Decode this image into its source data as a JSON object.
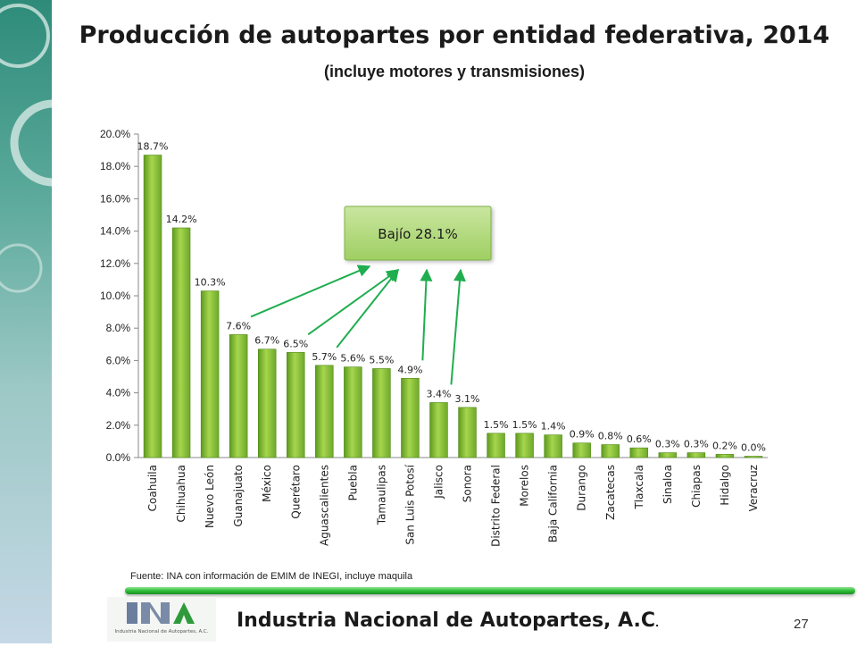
{
  "header": {
    "title": "Producción de autopartes por entidad federativa, 2014",
    "subtitle": "(incluye motores y transmisiones)"
  },
  "chart_data": {
    "type": "bar",
    "categories": [
      "Coahuila",
      "Chihuahua",
      "Nuevo León",
      "Guanajuato",
      "México",
      "Querétaro",
      "Aguascalientes",
      "Puebla",
      "Tamaulipas",
      "San Luis Potosí",
      "Jalisco",
      "Sonora",
      "Distrito Federal",
      "Morelos",
      "Baja California",
      "Durango",
      "Zacatecas",
      "Tlaxcala",
      "Sinaloa",
      "Chiapas",
      "Hidalgo",
      "Veracruz"
    ],
    "values": [
      18.7,
      14.2,
      10.3,
      7.6,
      6.7,
      6.5,
      5.7,
      5.6,
      5.5,
      4.9,
      3.4,
      3.1,
      1.5,
      1.5,
      1.4,
      0.9,
      0.8,
      0.6,
      0.3,
      0.3,
      0.2,
      0.0
    ],
    "value_labels": [
      "18.7%",
      "14.2%",
      "10.3%",
      "7.6%",
      "6.7%",
      "6.5%",
      "5.7%",
      "5.6%",
      "5.5%",
      "4.9%",
      "3.4%",
      "3.1%",
      "1.5%",
      "1.5%",
      "1.4%",
      "0.9%",
      "0.8%",
      "0.6%",
      "0.3%",
      "0.3%",
      "0.2%",
      "0.0%"
    ],
    "ylim": [
      0,
      20
    ],
    "yticks": [
      "0.0%",
      "2.0%",
      "4.0%",
      "6.0%",
      "8.0%",
      "10.0%",
      "12.0%",
      "14.0%",
      "16.0%",
      "18.0%",
      "20.0%"
    ],
    "bar_color": "#8dc63f",
    "annotation": {
      "label": "Bajío 28.1%",
      "points_to": [
        "Guanajuato",
        "Querétaro",
        "Aguascalientes",
        "San Luis Potosí",
        "Jalisco"
      ],
      "arrow_color": "#1fae4f"
    }
  },
  "footer": {
    "source": "Fuente: INA con información de EMIM de INEGI, incluye maquila",
    "organization": "Industria Nacional de  Autopartes, A.C",
    "organization_suffix": ".",
    "page_number": "27",
    "logo_text": "Industria Nacional de Autopartes, A.C.",
    "logo_mark": "INA"
  },
  "colors": {
    "side_band": "#2e8b7a",
    "rule": "#2fbf3a"
  }
}
